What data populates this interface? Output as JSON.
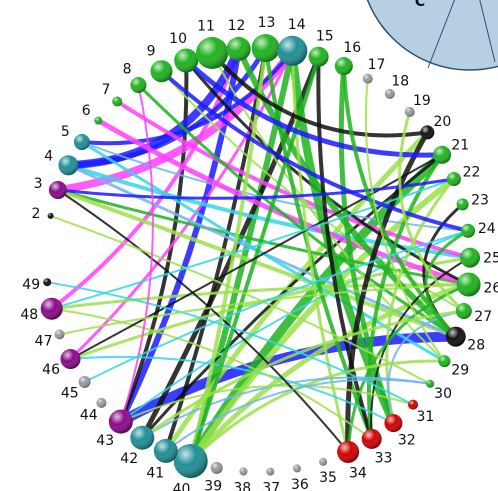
{
  "panel_label": "C",
  "colors": {
    "panel_fill": "#b7cfe3",
    "panel_stroke": "#2f4f6f",
    "purple": "#8a0a8a",
    "magenta": "#ff40ff",
    "teal": "#1f8f96",
    "cyan": "#33d6e6",
    "dark_teal": "#0e5f66",
    "red": "#d10000",
    "green": "#1fb31f",
    "light_green": "#9be04a",
    "black": "#111111",
    "blue": "#1a1aff",
    "sky": "#6fb4f0",
    "grey": "#9a9a9a"
  },
  "nodes": [
    {
      "label": "2",
      "color": "#111111",
      "size": 3
    },
    {
      "label": "3",
      "color": "#8a0a8a",
      "size": 9
    },
    {
      "label": "4",
      "color": "#1f8f96",
      "size": 10
    },
    {
      "label": "5",
      "color": "#1f8f96",
      "size": 8
    },
    {
      "label": "6",
      "color": "#1fb31f",
      "size": 4
    },
    {
      "label": "7",
      "color": "#1fb31f",
      "size": 5
    },
    {
      "label": "8",
      "color": "#1fb31f",
      "size": 8
    },
    {
      "label": "9",
      "color": "#1fb31f",
      "size": 11
    },
    {
      "label": "10",
      "color": "#1fb31f",
      "size": 12
    },
    {
      "label": "11",
      "color": "#1fb31f",
      "size": 16
    },
    {
      "label": "12",
      "color": "#1fb31f",
      "size": 12
    },
    {
      "label": "13",
      "color": "#1fb31f",
      "size": 14
    },
    {
      "label": "14",
      "color": "#1f8f96",
      "size": 15
    },
    {
      "label": "15",
      "color": "#1fb31f",
      "size": 10
    },
    {
      "label": "16",
      "color": "#1fb31f",
      "size": 9
    },
    {
      "label": "17",
      "color": "#9a9a9a",
      "size": 5
    },
    {
      "label": "18",
      "color": "#9a9a9a",
      "size": 5
    },
    {
      "label": "19",
      "color": "#9a9a9a",
      "size": 5
    },
    {
      "label": "20",
      "color": "#111111",
      "size": 7
    },
    {
      "label": "21",
      "color": "#1fb31f",
      "size": 9
    },
    {
      "label": "22",
      "color": "#1fb31f",
      "size": 7
    },
    {
      "label": "23",
      "color": "#1fb31f",
      "size": 6
    },
    {
      "label": "24",
      "color": "#1fb31f",
      "size": 7
    },
    {
      "label": "25",
      "color": "#1fb31f",
      "size": 10
    },
    {
      "label": "26",
      "color": "#1fb31f",
      "size": 12
    },
    {
      "label": "27",
      "color": "#1fb31f",
      "size": 8
    },
    {
      "label": "28",
      "color": "#111111",
      "size": 10
    },
    {
      "label": "29",
      "color": "#1fb31f",
      "size": 6
    },
    {
      "label": "30",
      "color": "#1fb31f",
      "size": 4
    },
    {
      "label": "31",
      "color": "#d10000",
      "size": 5
    },
    {
      "label": "32",
      "color": "#d10000",
      "size": 9
    },
    {
      "label": "33",
      "color": "#d10000",
      "size": 10
    },
    {
      "label": "34",
      "color": "#d10000",
      "size": 11
    },
    {
      "label": "35",
      "color": "#9a9a9a",
      "size": 4
    },
    {
      "label": "36",
      "color": "#9a9a9a",
      "size": 4
    },
    {
      "label": "37",
      "color": "#9a9a9a",
      "size": 4
    },
    {
      "label": "38",
      "color": "#9a9a9a",
      "size": 4
    },
    {
      "label": "39",
      "color": "#9a9a9a",
      "size": 6
    },
    {
      "label": "40",
      "color": "#1f8f96",
      "size": 17
    },
    {
      "label": "41",
      "color": "#1f8f96",
      "size": 12
    },
    {
      "label": "42",
      "color": "#1f8f96",
      "size": 12
    },
    {
      "label": "43",
      "color": "#8a0a8a",
      "size": 12
    },
    {
      "label": "44",
      "color": "#9a9a9a",
      "size": 5
    },
    {
      "label": "45",
      "color": "#9a9a9a",
      "size": 6
    },
    {
      "label": "46",
      "color": "#8a0a8a",
      "size": 10
    },
    {
      "label": "47",
      "color": "#9a9a9a",
      "size": 5
    },
    {
      "label": "48",
      "color": "#8a0a8a",
      "size": 11
    },
    {
      "label": "49",
      "color": "#111111",
      "size": 4
    }
  ],
  "edges": [
    {
      "from": "43",
      "to": "28",
      "color": "#1a1aff",
      "width": 10
    },
    {
      "from": "43",
      "to": "12",
      "color": "#1a1aff",
      "width": 6
    },
    {
      "from": "40",
      "to": "21",
      "color": "#1fb31f",
      "width": 9
    },
    {
      "from": "40",
      "to": "22",
      "color": "#9be04a",
      "width": 6
    },
    {
      "from": "40",
      "to": "14",
      "color": "#1fb31f",
      "width": 6
    },
    {
      "from": "40",
      "to": "26",
      "color": "#9be04a",
      "width": 5
    },
    {
      "from": "41",
      "to": "20",
      "color": "#9be04a",
      "width": 5
    },
    {
      "from": "41",
      "to": "13",
      "color": "#111111",
      "width": 4
    },
    {
      "from": "42",
      "to": "15",
      "color": "#111111",
      "width": 5
    },
    {
      "from": "42",
      "to": "21",
      "color": "#111111",
      "width": 3
    },
    {
      "from": "43",
      "to": "10",
      "color": "#111111",
      "width": 4
    },
    {
      "from": "43",
      "to": "24",
      "color": "#33d6e6",
      "width": 2
    },
    {
      "from": "46",
      "to": "25",
      "color": "#9be04a",
      "width": 3
    },
    {
      "from": "46",
      "to": "14",
      "color": "#ff40ff",
      "width": 3
    },
    {
      "from": "48",
      "to": "26",
      "color": "#9be04a",
      "width": 3
    },
    {
      "from": "48",
      "to": "12",
      "color": "#ff40ff",
      "width": 4
    },
    {
      "from": "3",
      "to": "26",
      "color": "#1fb31f",
      "width": 3
    },
    {
      "from": "3",
      "to": "14",
      "color": "#ff40ff",
      "width": 8
    },
    {
      "from": "3",
      "to": "28",
      "color": "#9be04a",
      "width": 4
    },
    {
      "from": "4",
      "to": "25",
      "color": "#33d6e6",
      "width": 4
    },
    {
      "from": "4",
      "to": "28",
      "color": "#6fb4f0",
      "width": 3
    },
    {
      "from": "4",
      "to": "12",
      "color": "#1a1aff",
      "width": 8
    },
    {
      "from": "4",
      "to": "13",
      "color": "#1a1aff",
      "width": 5
    },
    {
      "from": "5",
      "to": "29",
      "color": "#33d6e6",
      "width": 3
    },
    {
      "from": "5",
      "to": "14",
      "color": "#1a1aff",
      "width": 4
    },
    {
      "from": "5",
      "to": "24",
      "color": "#6fb4f0",
      "width": 2
    },
    {
      "from": "6",
      "to": "26",
      "color": "#ff40ff",
      "width": 5
    },
    {
      "from": "7",
      "to": "25",
      "color": "#ff40ff",
      "width": 4
    },
    {
      "from": "8",
      "to": "28",
      "color": "#1fb31f",
      "width": 3
    },
    {
      "from": "9",
      "to": "27",
      "color": "#9be04a",
      "width": 2
    },
    {
      "from": "10",
      "to": "26",
      "color": "#111111",
      "width": 3
    },
    {
      "from": "11",
      "to": "29",
      "color": "#9be04a",
      "width": 2
    },
    {
      "from": "12",
      "to": "28",
      "color": "#1fb31f",
      "width": 6
    },
    {
      "from": "13",
      "to": "33",
      "color": "#1fb31f",
      "width": 4
    },
    {
      "from": "14",
      "to": "32",
      "color": "#1fb31f",
      "width": 8
    },
    {
      "from": "14",
      "to": "34",
      "color": "#9be04a",
      "width": 3
    },
    {
      "from": "15",
      "to": "33",
      "color": "#111111",
      "width": 4
    },
    {
      "from": "16",
      "to": "32",
      "color": "#1fb31f",
      "width": 5
    },
    {
      "from": "20",
      "to": "34",
      "color": "#111111",
      "width": 5
    },
    {
      "from": "21",
      "to": "33",
      "color": "#1fb31f",
      "width": 4
    },
    {
      "from": "22",
      "to": "32",
      "color": "#9be04a",
      "width": 3
    },
    {
      "from": "23",
      "to": "28",
      "color": "#111111",
      "width": 3
    },
    {
      "from": "24",
      "to": "28",
      "color": "#1fb31f",
      "width": 3
    },
    {
      "from": "25",
      "to": "33",
      "color": "#111111",
      "width": 2
    },
    {
      "from": "26",
      "to": "34",
      "color": "#1fb31f",
      "width": 3
    },
    {
      "from": "27",
      "to": "32",
      "color": "#6fb4f0",
      "width": 2
    },
    {
      "from": "29",
      "to": "40",
      "color": "#9be04a",
      "width": 3
    },
    {
      "from": "30",
      "to": "42",
      "color": "#6fb4f0",
      "width": 2
    },
    {
      "from": "31",
      "to": "43",
      "color": "#9be04a",
      "width": 2
    },
    {
      "from": "32",
      "to": "46",
      "color": "#33d6e6",
      "width": 2
    },
    {
      "from": "33",
      "to": "48",
      "color": "#9be04a",
      "width": 2
    },
    {
      "from": "34",
      "to": "3",
      "color": "#111111",
      "width": 2
    },
    {
      "from": "40",
      "to": "13",
      "color": "#9be04a",
      "width": 4
    },
    {
      "from": "40",
      "to": "15",
      "color": "#1fb31f",
      "width": 4
    },
    {
      "from": "42",
      "to": "27",
      "color": "#9be04a",
      "width": 3
    },
    {
      "from": "46",
      "to": "21",
      "color": "#111111",
      "width": 2
    },
    {
      "from": "48",
      "to": "22",
      "color": "#33d6e6",
      "width": 2
    },
    {
      "from": "2",
      "to": "30",
      "color": "#9be04a",
      "width": 2
    },
    {
      "from": "49",
      "to": "31",
      "color": "#33d6e6",
      "width": 2
    },
    {
      "from": "3",
      "to": "22",
      "color": "#1a1aff",
      "width": 3
    },
    {
      "from": "9",
      "to": "24",
      "color": "#1a1aff",
      "width": 4
    },
    {
      "from": "10",
      "to": "21",
      "color": "#1a1aff",
      "width": 5
    },
    {
      "from": "11",
      "to": "20",
      "color": "#111111",
      "width": 4
    },
    {
      "from": "16",
      "to": "28",
      "color": "#1fb31f",
      "width": 4
    },
    {
      "from": "17",
      "to": "29",
      "color": "#9be04a",
      "width": 2
    },
    {
      "from": "19",
      "to": "27",
      "color": "#9be04a",
      "width": 3
    },
    {
      "from": "41",
      "to": "30",
      "color": "#6fb4f0",
      "width": 2
    },
    {
      "from": "43",
      "to": "8",
      "color": "#ff40ff",
      "width": 2
    },
    {
      "from": "47",
      "to": "26",
      "color": "#9be04a",
      "width": 2
    },
    {
      "from": "45",
      "to": "24",
      "color": "#33d6e6",
      "width": 2
    }
  ]
}
